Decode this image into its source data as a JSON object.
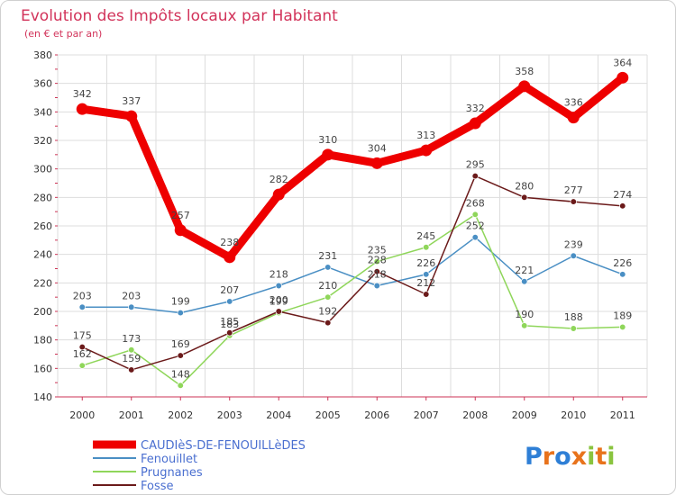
{
  "chart_data": {
    "type": "line",
    "title": "Evolution des Impôts locaux par Habitant",
    "subtitle": "(en € et par an)",
    "x": [
      "2000",
      "2001",
      "2002",
      "2003",
      "2004",
      "2005",
      "2006",
      "2007",
      "2008",
      "2009",
      "2010",
      "2011"
    ],
    "ylim": [
      140,
      380
    ],
    "yticks": [
      140,
      160,
      180,
      200,
      220,
      240,
      260,
      280,
      300,
      320,
      340,
      360,
      380
    ],
    "grid": true,
    "legend_position": "bottom-left",
    "series": [
      {
        "name": "CAUDIèS-DE-FENOUILLèDES",
        "color": "#ee0000",
        "values": [
          342,
          337,
          257,
          238,
          282,
          310,
          304,
          313,
          332,
          358,
          336,
          364
        ]
      },
      {
        "name": "Fenouillet",
        "color": "#4a8fc4",
        "values": [
          203,
          203,
          199,
          207,
          218,
          231,
          218,
          226,
          252,
          221,
          239,
          226
        ]
      },
      {
        "name": "Prugnanes",
        "color": "#8fd65a",
        "values": [
          162,
          173,
          148,
          183,
          199,
          210,
          235,
          245,
          268,
          190,
          188,
          189
        ]
      },
      {
        "name": "Fosse",
        "color": "#6b1a1a",
        "values": [
          175,
          159,
          169,
          185,
          200,
          192,
          228,
          212,
          295,
          280,
          277,
          274
        ]
      }
    ]
  },
  "logo": {
    "letters": [
      "P",
      "r",
      "o",
      "x",
      "i",
      "t",
      "i"
    ],
    "colors": [
      "#2e7fd6",
      "#e8731c",
      "#2e7fd6",
      "#e8731c",
      "#8ac43f",
      "#e8731c",
      "#8ac43f"
    ]
  }
}
